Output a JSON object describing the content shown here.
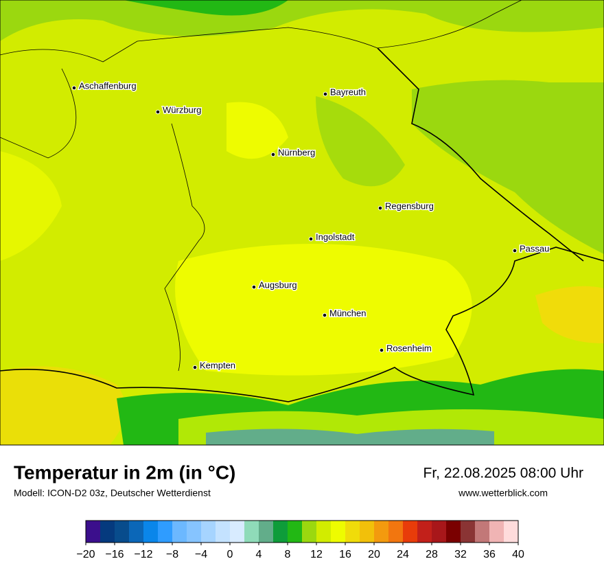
{
  "map": {
    "cities": [
      "Aschaffenburg",
      "Würzburg",
      "Bayreuth",
      "Nürnberg",
      "Regensburg",
      "Ingolstadt",
      "Passau",
      "Augsburg",
      "München",
      "Rosenheim",
      "Kempten"
    ]
  },
  "title": "Temperatur in 2m (in °C)",
  "subtitle": "Modell: ICON-D2 03z, Deutscher Wetterdienst",
  "datetime": "Fr, 22.08.2025 08:00 Uhr",
  "website": "www.wetterblick.com",
  "colorbar": {
    "lim": [
      -20,
      40
    ],
    "colors": [
      "#3b0f8c",
      "#053a7e",
      "#084c8c",
      "#0b67b8",
      "#0a86ea",
      "#2f9cff",
      "#6cb8ff",
      "#86c4ff",
      "#a6d4ff",
      "#c4e2ff",
      "#d8ebff",
      "#8fdbb9",
      "#62ad8a",
      "#0e9c3a",
      "#22b814",
      "#9bd80f",
      "#d2ec00",
      "#eefc00",
      "#f0dc0a",
      "#f2c00a",
      "#f39a0e",
      "#f2760f",
      "#e83c0a",
      "#c2201a",
      "#a8171a",
      "#7a0000",
      "#8a3434",
      "#c27878",
      "#f0b4b4",
      "#ffdcdc"
    ],
    "ticks": [
      {
        "value": -20,
        "label": "−20"
      },
      {
        "value": -16,
        "label": "−16"
      },
      {
        "value": -12,
        "label": "−12"
      },
      {
        "value": -8,
        "label": "−8"
      },
      {
        "value": -4,
        "label": "−4"
      },
      0,
      4,
      8,
      12,
      16,
      20,
      24,
      28,
      32,
      36,
      40
    ]
  }
}
